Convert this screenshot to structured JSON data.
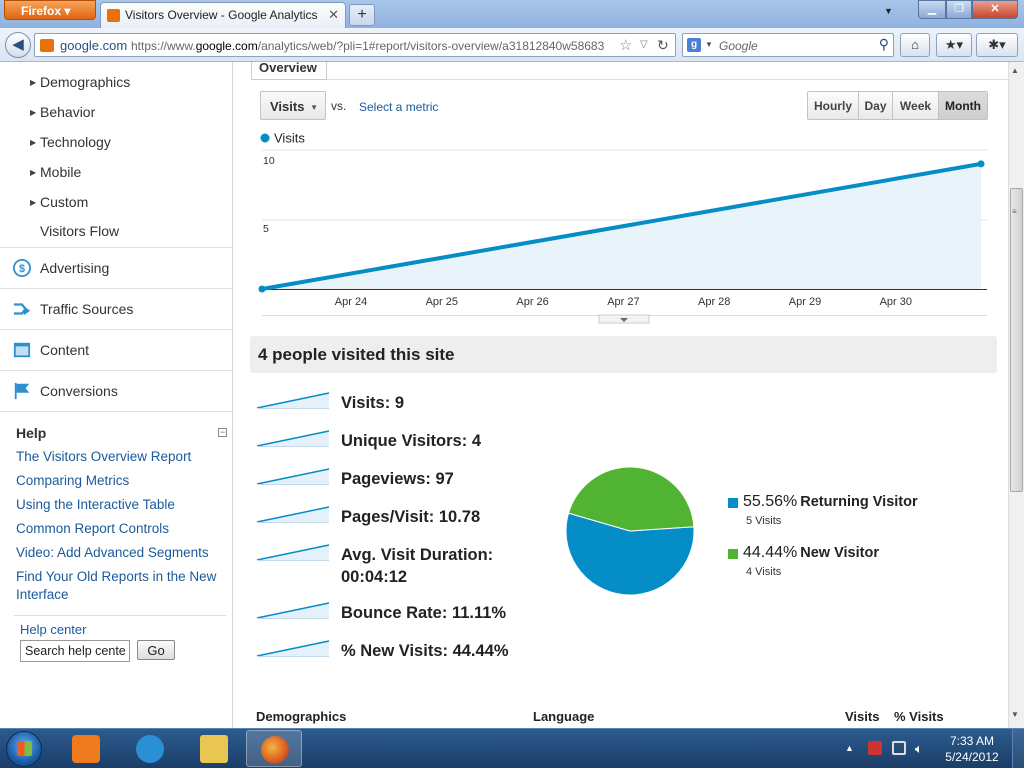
{
  "browser": {
    "menu_button": "Firefox",
    "tab_title": "Visitors Overview - Google Analytics",
    "new_tab": "+",
    "site_domain": "google.com",
    "url_prefix": "https://www.",
    "url_domain": "google.com",
    "url_path": "/analytics/web/?pli=1#report/visitors-overview/a31812840w58683",
    "search_placeholder": "Google"
  },
  "sidebar": {
    "sub_items": [
      "Demographics",
      "Behavior",
      "Technology",
      "Mobile",
      "Custom"
    ],
    "visitors_flow": "Visitors Flow",
    "sections": [
      "Advertising",
      "Traffic Sources",
      "Content",
      "Conversions"
    ],
    "help_title": "Help",
    "help_links": [
      "The Visitors Overview Report",
      "Comparing Metrics",
      "Using the Interactive Table",
      "Common Report Controls",
      "Video: Add Advanced Segments",
      "Find Your Old Reports in the New Interface"
    ],
    "help_center": "Help center",
    "help_search_value": "Search help center",
    "help_go": "Go"
  },
  "main": {
    "overview_tab": "Overview",
    "metric_select": "Visits",
    "vs": "vs.",
    "select_metric": "Select a metric",
    "ranges": [
      "Hourly",
      "Day",
      "Week",
      "Month"
    ],
    "active_range": "Month",
    "summary_title": "4 people visited this site",
    "metrics": [
      {
        "label": "Visits:",
        "value": "9"
      },
      {
        "label": "Unique Visitors:",
        "value": "4"
      },
      {
        "label": "Pageviews:",
        "value": "97"
      },
      {
        "label": "Pages/Visit:",
        "value": "10.78"
      },
      {
        "label": "Avg. Visit Duration:",
        "value": "00:04:12"
      },
      {
        "label": "Bounce Rate:",
        "value": "11.11%"
      },
      {
        "label": "% New Visits:",
        "value": "44.44%"
      }
    ],
    "bottom_headers": {
      "demographics": "Demographics",
      "language": "Language",
      "visits": "Visits",
      "pct_visits": "% Visits"
    }
  },
  "chart_data": [
    {
      "type": "line",
      "legend": [
        "Visits"
      ],
      "series_color": "#058dc7",
      "x_ticks": [
        "Apr 24",
        "Apr 25",
        "Apr 26",
        "Apr 27",
        "Apr 28",
        "Apr 29",
        "Apr 30"
      ],
      "x": [
        "Apr 23",
        "May 1"
      ],
      "series": [
        {
          "name": "Visits",
          "values": [
            0,
            9
          ]
        }
      ],
      "y_ticks": [
        "10",
        "5"
      ],
      "ylim": [
        0,
        10
      ],
      "grid": true
    },
    {
      "type": "pie",
      "labels": [
        "Returning Visitor",
        "New Visitor"
      ],
      "values": [
        55.56,
        44.44
      ],
      "value_labels": [
        "55.56%",
        "44.44%"
      ],
      "sub_labels": [
        "5 Visits",
        "4 Visits"
      ],
      "colors": [
        "#058dc7",
        "#50b432"
      ]
    }
  ],
  "taskbar": {
    "time": "7:33 AM",
    "date": "5/24/2012"
  }
}
